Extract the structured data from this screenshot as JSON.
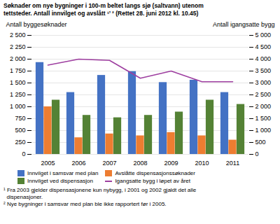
{
  "chart_data": {
    "type": "bar",
    "title": "Søknader om nye bygninger i 100-m beltet langs sjø (saltvann) utenom\ntettsteder. Antall innvilget og avslått ¹’ ² (Rettet 28. juni 2012 kl. 10.45)",
    "categories": [
      "2005",
      "2006",
      "2007",
      "2008",
      "2009",
      "2010",
      "2011"
    ],
    "series": [
      {
        "name": "Innvilget i samsvar med plan",
        "color": "#4472C4",
        "values": [
          1930,
          1300,
          1660,
          1740,
          1510,
          1560,
          1300
        ]
      },
      {
        "name": "Avslåtte dispensasjonssøknader",
        "color": "#ED7D31",
        "values": [
          1000,
          350,
          430,
          390,
          460,
          390,
          300
        ]
      },
      {
        "name": "Innvilget ved dispensasjon",
        "color": "#548235",
        "values": [
          1140,
          820,
          770,
          820,
          890,
          1140,
          1050
        ]
      },
      {
        "name": "Igangsatte bygg i løpet av året",
        "color": "#9E3FA0",
        "type": "line",
        "axis": "y2",
        "values": [
          3750,
          4000,
          3950,
          3200,
          3500,
          3050,
          3050
        ]
      }
    ],
    "ylabel": "Antall byggesøknader",
    "y2label": "Antall igangsatte bygg",
    "ylim": [
      0,
      2500
    ],
    "yticks": [
      0,
      250,
      500,
      750,
      {
        "value": 1000,
        "label": "1 000"
      },
      {
        "value": 1250,
        "label": "1 250"
      },
      {
        "value": 1500,
        "label": "1 500"
      },
      {
        "value": 1750,
        "label": "1 750"
      },
      {
        "value": 2000,
        "label": "2 000"
      },
      {
        "value": 2250,
        "label": "2 250"
      },
      {
        "value": 2500,
        "label": "2 500"
      }
    ],
    "y2lim": [
      0,
      5000
    ],
    "y2ticks": [
      0,
      500,
      {
        "value": 1000,
        "label": "1 000"
      },
      {
        "value": 1500,
        "label": "1 500"
      },
      {
        "value": 2000,
        "label": "2 000"
      },
      {
        "value": 2500,
        "label": "2 500"
      },
      {
        "value": 3000,
        "label": "3 000"
      },
      {
        "value": 3500,
        "label": "3 500"
      },
      {
        "value": 4000,
        "label": "4 000"
      },
      {
        "value": 4500,
        "label": "4 500"
      },
      {
        "value": 5000,
        "label": "5 000"
      }
    ],
    "grid": true,
    "legend": "bottom",
    "annotations": [
      "¹ Fra 2003 gjelder dispensasjonene kun nybygg, i 2001 og 2002 gjaldt det alle",
      "  dispenasjoner.",
      "² Nye bygninger i samsvar med plan ble ikke rapportert før i 2005."
    ]
  }
}
